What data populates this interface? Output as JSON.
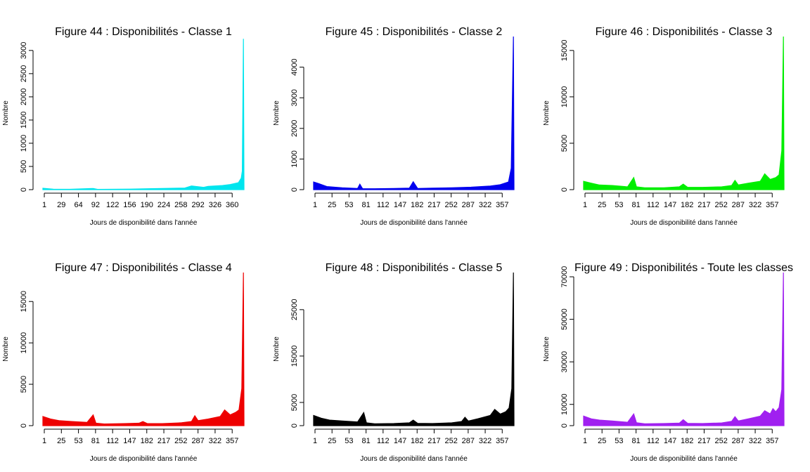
{
  "chart_data": [
    {
      "type": "area",
      "title": "Figure 44 : Disponibilités - Classe 1",
      "xlabel": "Jours de disponibilité dans l'année",
      "ylabel": "Nombre",
      "color": "#00e5ee",
      "x_ticks": [
        "1",
        "29",
        "64",
        "92",
        "122",
        "156",
        "190",
        "224",
        "258",
        "292",
        "326",
        "360"
      ],
      "y_ticks": [
        0,
        500,
        1000,
        1500,
        2000,
        2500,
        3000
      ],
      "ylim": [
        0,
        3300
      ],
      "x_range": [
        1,
        365
      ],
      "series": [
        {
          "points": [
            [
              1,
              30
            ],
            [
              20,
              10
            ],
            [
              50,
              8
            ],
            [
              92,
              25
            ],
            [
              100,
              6
            ],
            [
              160,
              12
            ],
            [
              190,
              20
            ],
            [
              224,
              28
            ],
            [
              258,
              35
            ],
            [
              270,
              80
            ],
            [
              292,
              50
            ],
            [
              300,
              70
            ],
            [
              326,
              90
            ],
            [
              340,
              110
            ],
            [
              355,
              150
            ],
            [
              360,
              250
            ],
            [
              362,
              400
            ],
            [
              364,
              3250
            ],
            [
              365,
              50
            ]
          ]
        }
      ]
    },
    {
      "type": "area",
      "title": "Figure 45 : Disponibilités - Classe 2",
      "xlabel": "Jours de disponibilité dans l'année",
      "ylabel": "Nombre",
      "color": "#0000ee",
      "x_ticks": [
        "1",
        "25",
        "53",
        "81",
        "112",
        "147",
        "182",
        "217",
        "252",
        "287",
        "322",
        "357"
      ],
      "y_ticks": [
        0,
        1000,
        2000,
        3000,
        4000
      ],
      "ylim": [
        0,
        5000
      ],
      "x_range": [
        1,
        365
      ],
      "series": [
        {
          "points": [
            [
              1,
              250
            ],
            [
              10,
              200
            ],
            [
              25,
              100
            ],
            [
              53,
              60
            ],
            [
              81,
              40
            ],
            [
              85,
              180
            ],
            [
              90,
              30
            ],
            [
              112,
              30
            ],
            [
              147,
              40
            ],
            [
              175,
              50
            ],
            [
              182,
              260
            ],
            [
              190,
              40
            ],
            [
              217,
              50
            ],
            [
              252,
              60
            ],
            [
              287,
              80
            ],
            [
              322,
              120
            ],
            [
              340,
              160
            ],
            [
              355,
              250
            ],
            [
              360,
              700
            ],
            [
              364,
              5000
            ],
            [
              365,
              100
            ]
          ]
        }
      ]
    },
    {
      "type": "area",
      "title": "Figure 46 : Disponibilités - Classe 3",
      "xlabel": "Jours de disponibilité dans l'année",
      "ylabel": "Nombre",
      "color": "#00ee00",
      "x_ticks": [
        "1",
        "25",
        "53",
        "81",
        "112",
        "147",
        "182",
        "217",
        "252",
        "287",
        "322",
        "357"
      ],
      "y_ticks": [
        0,
        5000,
        10000,
        15000
      ],
      "ylim": [
        0,
        16500
      ],
      "x_range": [
        1,
        365
      ],
      "series": [
        {
          "points": [
            [
              1,
              900
            ],
            [
              15,
              700
            ],
            [
              30,
              500
            ],
            [
              53,
              450
            ],
            [
              81,
              300
            ],
            [
              92,
              1300
            ],
            [
              97,
              300
            ],
            [
              112,
              200
            ],
            [
              147,
              200
            ],
            [
              175,
              300
            ],
            [
              182,
              600
            ],
            [
              190,
              250
            ],
            [
              217,
              250
            ],
            [
              252,
              300
            ],
            [
              270,
              450
            ],
            [
              276,
              1000
            ],
            [
              282,
              500
            ],
            [
              300,
              700
            ],
            [
              322,
              900
            ],
            [
              330,
              1700
            ],
            [
              340,
              1100
            ],
            [
              350,
              1300
            ],
            [
              356,
              1600
            ],
            [
              361,
              4200
            ],
            [
              364,
              16500
            ],
            [
              365,
              500
            ]
          ]
        }
      ]
    },
    {
      "type": "area",
      "title": "Figure 47 : Disponibilités - Classe 4",
      "xlabel": "Jours de disponibilité dans l'année",
      "ylabel": "Nombre",
      "color": "#ee0000",
      "x_ticks": [
        "1",
        "25",
        "53",
        "81",
        "112",
        "147",
        "182",
        "217",
        "252",
        "287",
        "322",
        "357"
      ],
      "y_ticks": [
        0,
        5000,
        10000,
        15000
      ],
      "ylim": [
        0,
        18500
      ],
      "x_range": [
        1,
        365
      ],
      "series": [
        {
          "points": [
            [
              1,
              1100
            ],
            [
              15,
              800
            ],
            [
              30,
              600
            ],
            [
              53,
              500
            ],
            [
              81,
              400
            ],
            [
              92,
              1300
            ],
            [
              97,
              300
            ],
            [
              112,
              200
            ],
            [
              147,
              250
            ],
            [
              175,
              300
            ],
            [
              182,
              500
            ],
            [
              190,
              250
            ],
            [
              217,
              250
            ],
            [
              252,
              350
            ],
            [
              270,
              500
            ],
            [
              276,
              1200
            ],
            [
              282,
              600
            ],
            [
              300,
              800
            ],
            [
              322,
              1100
            ],
            [
              330,
              1900
            ],
            [
              340,
              1300
            ],
            [
              350,
              1600
            ],
            [
              356,
              1900
            ],
            [
              361,
              4500
            ],
            [
              364,
              18500
            ],
            [
              365,
              600
            ]
          ]
        }
      ]
    },
    {
      "type": "area",
      "title": "Figure 48 : Disponibilités - Classe 5",
      "xlabel": "Jours de disponibilité dans l'année",
      "ylabel": "Nombre",
      "color": "#000000",
      "x_ticks": [
        "1",
        "25",
        "53",
        "81",
        "112",
        "147",
        "182",
        "217",
        "252",
        "287",
        "322",
        "357"
      ],
      "y_ticks": [
        0,
        5000,
        15000,
        25000
      ],
      "ylim": [
        0,
        33000
      ],
      "x_range": [
        1,
        365
      ],
      "series": [
        {
          "points": [
            [
              1,
              2200
            ],
            [
              15,
              1600
            ],
            [
              30,
              1200
            ],
            [
              53,
              1000
            ],
            [
              81,
              800
            ],
            [
              92,
              2800
            ],
            [
              97,
              600
            ],
            [
              112,
              400
            ],
            [
              147,
              450
            ],
            [
              175,
              600
            ],
            [
              182,
              1200
            ],
            [
              190,
              500
            ],
            [
              217,
              450
            ],
            [
              252,
              600
            ],
            [
              270,
              900
            ],
            [
              276,
              1800
            ],
            [
              282,
              1000
            ],
            [
              300,
              1500
            ],
            [
              322,
              2200
            ],
            [
              330,
              3500
            ],
            [
              340,
              2500
            ],
            [
              350,
              3000
            ],
            [
              356,
              3800
            ],
            [
              361,
              8000
            ],
            [
              364,
              33000
            ],
            [
              365,
              1000
            ]
          ]
        }
      ]
    },
    {
      "type": "area",
      "title": "Figure 49 : Disponibilités - Toute les classes",
      "xlabel": "Jours de disponibilité dans l'année",
      "ylabel": "Nombre",
      "color": "#a020f0",
      "x_ticks": [
        "1",
        "25",
        "53",
        "81",
        "112",
        "147",
        "182",
        "217",
        "252",
        "287",
        "322",
        "357"
      ],
      "y_ticks": [
        0,
        10000,
        30000,
        50000,
        70000
      ],
      "ylim": [
        0,
        72000
      ],
      "x_range": [
        1,
        365
      ],
      "series": [
        {
          "points": [
            [
              1,
              4500
            ],
            [
              15,
              3200
            ],
            [
              30,
              2600
            ],
            [
              53,
              2200
            ],
            [
              81,
              1600
            ],
            [
              92,
              5500
            ],
            [
              97,
              1400
            ],
            [
              112,
              900
            ],
            [
              147,
              1000
            ],
            [
              175,
              1200
            ],
            [
              182,
              2800
            ],
            [
              190,
              1100
            ],
            [
              217,
              1000
            ],
            [
              252,
              1300
            ],
            [
              270,
              2000
            ],
            [
              276,
              4200
            ],
            [
              282,
              2200
            ],
            [
              300,
              3200
            ],
            [
              322,
              4500
            ],
            [
              330,
              7000
            ],
            [
              340,
              5500
            ],
            [
              345,
              8000
            ],
            [
              350,
              6500
            ],
            [
              356,
              8500
            ],
            [
              361,
              17000
            ],
            [
              364,
              72000
            ],
            [
              365,
              2500
            ]
          ]
        }
      ]
    }
  ]
}
